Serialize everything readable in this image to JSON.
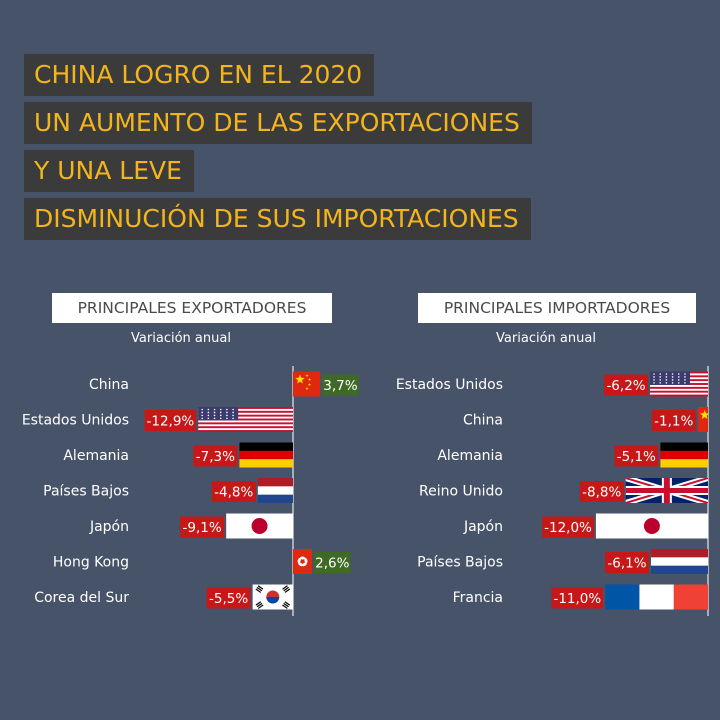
{
  "headline": [
    "CHINA LOGRO EN EL 2020",
    "UN AUMENTO DE LAS EXPORTACIONES",
    "Y UNA LEVE",
    "DISMINUCIÓN DE SUS IMPORTACIONES"
  ],
  "colors": {
    "background": "#475369",
    "headline_bg": "#3b3b3b",
    "headline_text": "#f2b51c",
    "negative_label": "#c61818",
    "positive_label": "#3f6a25",
    "axis_line": "#c9ccd3"
  },
  "chart_data": [
    {
      "type": "bar",
      "title": "PRINCIPALES EXPORTADORES",
      "subtitle": "Variación anual",
      "categories": [
        "China",
        "Estados Unidos",
        "Alemania",
        "Países Bajos",
        "Japón",
        "Hong Kong",
        "Corea del Sur"
      ],
      "values": [
        3.7,
        -12.9,
        -7.3,
        -4.8,
        -9.1,
        2.6,
        -5.5
      ],
      "labels": [
        "3,7%",
        "-12,9%",
        "-7,3%",
        "-4,8%",
        "-9,1%",
        "2,6%",
        "-5,5%"
      ],
      "bar_fill": [
        "flag-china",
        "flag-usa",
        "flag-germany",
        "flag-netherlands",
        "flag-japan",
        "flag-hongkong",
        "flag-korea"
      ],
      "xlim": [
        -12.9,
        3.7
      ]
    },
    {
      "type": "bar",
      "title": "PRINCIPALES IMPORTADORES",
      "subtitle": "Variación anual",
      "categories": [
        "Estados Unidos",
        "China",
        "Alemania",
        "Reino Unido",
        "Japón",
        "Países Bajos",
        "Francia"
      ],
      "values": [
        -6.2,
        -1.1,
        -5.1,
        -8.8,
        -12.0,
        -6.1,
        -11.0
      ],
      "labels": [
        "-6,2%",
        "-1,1%",
        "-5,1%",
        "-8,8%",
        "-12,0%",
        "-6,1%",
        "-11,0%"
      ],
      "bar_fill": [
        "flag-usa",
        "flag-china",
        "flag-germany",
        "flag-uk",
        "flag-japan",
        "flag-netherlands",
        "flag-france"
      ],
      "xlim": [
        -12.0,
        0
      ]
    }
  ]
}
